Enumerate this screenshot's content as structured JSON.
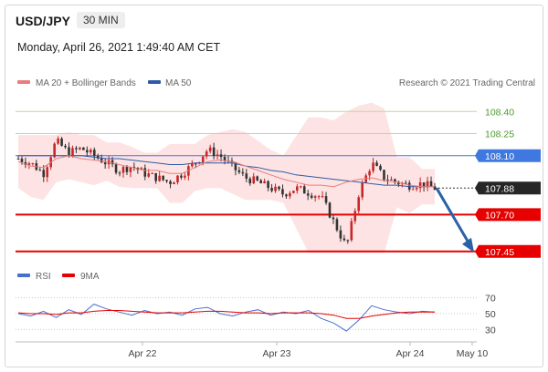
{
  "header": {
    "symbol": "USD/JPY",
    "timeframe": "30 MIN",
    "datetime": "Monday, April 26, 2021 1:49:40 AM CET"
  },
  "legend": {
    "ma20": "MA 20 + Bollinger Bands",
    "ma50": "MA 50",
    "copyright": "Research © 2021 Trading Central"
  },
  "rsi_legend": {
    "rsi": "RSI",
    "ma9": "9MA"
  },
  "colors": {
    "ma20": "#e97d7d",
    "ma50": "#2f5aa8",
    "bands_fill": "#fde0e0",
    "bull": "#c62828",
    "bear": "#333333",
    "target_green": "#bcd9a0",
    "pivot_blue": "#3f78e0",
    "support_red": "#e60000",
    "arrow": "#2a62a8"
  },
  "chart_data": [
    {
      "type": "line",
      "title": "USD/JPY",
      "ylim": [
        107.3,
        108.6
      ],
      "x_ticks": [
        "Apr 22",
        "Apr 23",
        "Apr 24",
        "May 10"
      ],
      "levels": [
        {
          "name": "target-2",
          "value": 108.4,
          "label": "108.40",
          "style": "green-line"
        },
        {
          "name": "target-1",
          "value": 108.25,
          "label": "108.25",
          "style": "green-line"
        },
        {
          "name": "pivot",
          "value": 108.1,
          "label": "108.10",
          "style": "blue-tag"
        },
        {
          "name": "last",
          "value": 107.88,
          "label": "107.88",
          "style": "dark-tag"
        },
        {
          "name": "support-1",
          "value": 107.7,
          "label": "107.70",
          "style": "red-tag"
        },
        {
          "name": "support-2",
          "value": 107.45,
          "label": "107.45",
          "style": "red-tag"
        }
      ],
      "series": [
        {
          "name": "MA 20 + Bollinger Bands",
          "values": [
            108.06,
            108.03,
            108.02,
            108.08,
            108.1,
            108.08,
            108.07,
            108.06,
            108.04,
            108.02,
            108.0,
            108.0,
            107.98,
            107.98,
            108.02,
            108.06,
            108.07,
            108.06,
            108.03,
            108.0,
            107.97,
            107.94,
            107.92,
            107.9,
            107.9,
            107.89,
            107.92,
            107.94,
            107.95,
            107.93,
            107.92,
            107.9,
            107.89,
            107.89
          ]
        },
        {
          "name": "MA 50",
          "values": [
            108.1,
            108.1,
            108.1,
            108.1,
            108.1,
            108.1,
            108.09,
            108.08,
            108.08,
            108.07,
            108.06,
            108.05,
            108.04,
            108.04,
            108.05,
            108.05,
            108.05,
            108.05,
            108.03,
            108.02,
            108.0,
            107.99,
            107.97,
            107.96,
            107.95,
            107.94,
            107.93,
            107.92,
            107.91,
            107.9,
            107.9,
            107.89,
            107.89,
            107.89
          ]
        },
        {
          "name": "Price",
          "values": [
            108.08,
            108.05,
            107.98,
            108.2,
            108.12,
            108.15,
            108.1,
            108.05,
            108.0,
            108.03,
            107.98,
            107.95,
            107.92,
            107.98,
            108.05,
            108.14,
            108.1,
            108.02,
            107.95,
            107.92,
            107.88,
            107.84,
            107.88,
            107.85,
            107.82,
            107.65,
            107.48,
            107.85,
            108.05,
            107.95,
            107.92,
            107.9,
            107.91,
            107.88
          ]
        }
      ],
      "forecast": {
        "from": 107.88,
        "to": 107.45
      }
    },
    {
      "type": "line",
      "title": "RSI",
      "ylim": [
        20,
        80
      ],
      "y_ticks": [
        70,
        50,
        30
      ],
      "series": [
        {
          "name": "RSI",
          "values": [
            50,
            47,
            53,
            45,
            55,
            49,
            62,
            56,
            52,
            48,
            54,
            50,
            52,
            48,
            56,
            58,
            50,
            47,
            52,
            55,
            48,
            52,
            50,
            54,
            44,
            38,
            28,
            42,
            60,
            55,
            52,
            50,
            53,
            52
          ]
        },
        {
          "name": "9MA",
          "values": [
            51,
            50,
            50,
            49,
            51,
            51,
            53,
            54,
            54,
            53,
            52,
            51,
            51,
            51,
            52,
            53,
            53,
            52,
            51,
            51,
            50,
            51,
            51,
            51,
            50,
            48,
            44,
            44,
            47,
            49,
            51,
            52,
            52,
            52
          ]
        }
      ]
    }
  ]
}
